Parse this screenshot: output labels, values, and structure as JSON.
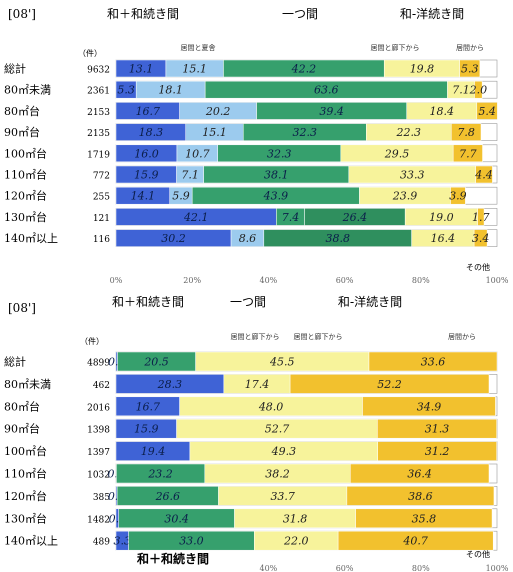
{
  "chart_data": [
    {
      "type": "bar",
      "orientation": "horizontal",
      "stacked": true,
      "title": "[08']",
      "unit_label": "（件）",
      "header_labels": [
        "和＋和続き間",
        "一つ間",
        "和-洋続き間"
      ],
      "sub_labels": [
        "居間と夏舎",
        "居間と廊下から",
        "居間から"
      ],
      "categories": [
        "総計",
        "80㎡未満",
        "80㎡台",
        "90㎡台",
        "100㎡台",
        "110㎡台",
        "120㎡台",
        "130㎡台",
        "140㎡以上"
      ],
      "counts": [
        "9632",
        "2361",
        "2153",
        "2135",
        "1719",
        "772",
        "255",
        "121",
        "116"
      ],
      "series": [
        {
          "values": [
            13.1,
            5.3,
            16.7,
            18.3,
            16.0,
            15.9,
            14.1,
            42.1,
            30.2
          ],
          "labels": [
            "13.1",
            "5.3",
            "16.7",
            "18.3",
            "16.0",
            "15.9",
            "14.1",
            "42.1",
            "30.2"
          ]
        },
        {
          "values": [
            15.1,
            18.1,
            20.2,
            15.1,
            10.7,
            7.1,
            5.9,
            0,
            8.6
          ],
          "labels": [
            "15.1",
            "18.1",
            "20.2",
            "15.1",
            "10.7",
            "7.1",
            "5.9",
            "",
            "8.6"
          ]
        },
        {
          "values": [
            42.2,
            63.6,
            39.4,
            32.3,
            32.3,
            38.1,
            43.9,
            7.4,
            0
          ],
          "labels": [
            "42.2",
            "63.6",
            "39.4",
            "32.3",
            "32.3",
            "38.1",
            "43.9",
            "7.4",
            ""
          ]
        },
        {
          "values": [
            0,
            0,
            0,
            0,
            0,
            0,
            0,
            26.4,
            38.8
          ],
          "labels": [
            "",
            "",
            "",
            "",
            "",
            "",
            "",
            "26.4",
            "38.8"
          ]
        },
        {
          "values": [
            19.8,
            7.1,
            18.4,
            22.3,
            29.5,
            33.3,
            23.9,
            19.0,
            16.4
          ],
          "labels": [
            "19.8",
            "7.1",
            "18.4",
            "22.3",
            "29.5",
            "33.3",
            "23.9",
            "19.0",
            "16.4"
          ]
        },
        {
          "values": [
            5.3,
            2.0,
            5.4,
            7.8,
            7.7,
            4.4,
            3.9,
            1.7,
            3.4
          ],
          "labels": [
            "5.3",
            "2.0",
            "5.4",
            "7.8",
            "7.7",
            "4.4",
            "3.9",
            "1.7",
            "3.4"
          ]
        }
      ],
      "series_colors": [
        "#3f63d6",
        "#9ccbee",
        "#36a06d",
        "#2f8f5e",
        "#f7f39b",
        "#f2c12e"
      ],
      "other_label": "その他",
      "x_ticks": [
        "0%",
        "20%",
        "40%",
        "60%",
        "80%",
        "100%"
      ],
      "xlim": [
        0,
        100
      ]
    },
    {
      "type": "bar",
      "orientation": "horizontal",
      "stacked": true,
      "title": "[08']",
      "unit_label": "（件）",
      "header_labels": [
        "和＋和続き間",
        "一つ間",
        "和-洋続き間"
      ],
      "sub_labels": [
        "居間と廊下から",
        "居間と廊下から",
        "居間から"
      ],
      "categories": [
        "総計",
        "80㎡未満",
        "80㎡台",
        "90㎡台",
        "100㎡台",
        "110㎡台",
        "120㎡台",
        "130㎡台",
        "140㎡以上"
      ],
      "counts": [
        "4899",
        "462",
        "2016",
        "1398",
        "1397",
        "1032",
        "385",
        "1482",
        "489"
      ],
      "series": [
        {
          "values": [
            0.4,
            28.3,
            16.7,
            15.9,
            19.4,
            0.1,
            0.3,
            0.7,
            3.3
          ],
          "labels": [
            "0.4",
            "28.3",
            "16.7",
            "15.9",
            "19.4",
            "0.1",
            "0.3",
            "0.7",
            "3.3"
          ]
        },
        {
          "values": [
            20.5,
            0,
            0,
            0,
            0,
            23.2,
            26.6,
            30.4,
            33.0
          ],
          "labels": [
            "20.5",
            "",
            "",
            "",
            "",
            "23.2",
            "26.6",
            "30.4",
            "33.0"
          ]
        },
        {
          "values": [
            45.5,
            17.4,
            48.0,
            52.7,
            49.3,
            38.2,
            33.7,
            31.8,
            22.0
          ],
          "labels": [
            "45.5",
            "17.4",
            "48.0",
            "52.7",
            "49.3",
            "38.2",
            "33.7",
            "31.8",
            "22.0"
          ]
        },
        {
          "values": [
            33.6,
            52.2,
            34.9,
            31.3,
            31.2,
            36.4,
            38.6,
            35.8,
            40.7
          ],
          "labels": [
            "33.6",
            "52.2",
            "34.9",
            "31.3",
            "31.2",
            "36.4",
            "38.6",
            "35.8",
            "40.7"
          ]
        }
      ],
      "series_colors": [
        "#3f63d6",
        "#36a06d",
        "#f7f39b",
        "#f2c12e"
      ],
      "other_label": "その他",
      "bottom_label": "和＋和続き間",
      "x_ticks": [
        "40%",
        "60%",
        "80%",
        "100%"
      ],
      "xlim": [
        0,
        100
      ]
    }
  ]
}
